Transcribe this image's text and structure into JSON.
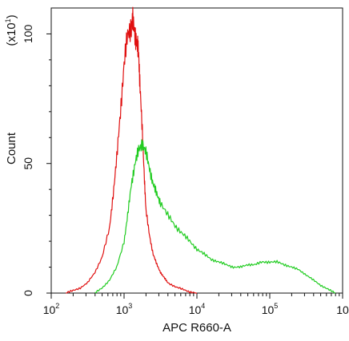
{
  "chart_data": {
    "type": "line",
    "xlabel": "APC R660-A",
    "ylabel": "Count",
    "y_scale_note": "(x10",
    "y_scale_exp": "1",
    "x_scale": "log",
    "xlim_exp": [
      2,
      6
    ],
    "ylim": [
      0,
      110
    ],
    "grid": false,
    "legend": "none",
    "x_ticks": [
      {
        "base": "10",
        "exp": "2"
      },
      {
        "base": "10",
        "exp": "3"
      },
      {
        "base": "10",
        "exp": "4"
      },
      {
        "base": "10",
        "exp": "5"
      },
      {
        "base": "10",
        "exp": ""
      }
    ],
    "y_ticks": [
      {
        "value": 0,
        "label": "0"
      },
      {
        "value": 50,
        "label": "50"
      },
      {
        "value": 100,
        "label": "100"
      }
    ],
    "series": [
      {
        "color": "#e01010",
        "log10_x": [
          2.2,
          2.3,
          2.4,
          2.5,
          2.6,
          2.7,
          2.8,
          2.85,
          2.9,
          2.95,
          3.0,
          3.05,
          3.1,
          3.12,
          3.15,
          3.18,
          3.2,
          3.22,
          3.25,
          3.28,
          3.3,
          3.35,
          3.4,
          3.45,
          3.5,
          3.55,
          3.6,
          3.7,
          3.8,
          3.9,
          4.0
        ],
        "y": [
          0,
          1,
          2,
          4,
          8,
          14,
          25,
          38,
          52,
          70,
          88,
          100,
          103,
          105,
          100,
          96,
          92,
          80,
          62,
          44,
          32,
          22,
          15,
          11,
          8,
          6,
          4,
          2.5,
          1.5,
          0.5,
          0
        ]
      },
      {
        "color": "#22cc22",
        "log10_x": [
          2.6,
          2.7,
          2.8,
          2.9,
          3.0,
          3.05,
          3.1,
          3.15,
          3.2,
          3.25,
          3.3,
          3.35,
          3.4,
          3.45,
          3.5,
          3.6,
          3.7,
          3.8,
          3.9,
          4.0,
          4.1,
          4.2,
          4.3,
          4.4,
          4.5,
          4.6,
          4.7,
          4.8,
          4.9,
          5.0,
          5.1,
          5.2,
          5.3,
          5.4,
          5.5,
          5.6,
          5.7,
          5.8,
          5.9
        ],
        "y": [
          0,
          2,
          5,
          10,
          20,
          30,
          42,
          50,
          55,
          58,
          54,
          48,
          42,
          38,
          35,
          30,
          26,
          23,
          20,
          17,
          15,
          13,
          12,
          11,
          10,
          10,
          11,
          11,
          12,
          12,
          12,
          11,
          10,
          9,
          7,
          5,
          3,
          1.5,
          0
        ]
      }
    ]
  }
}
